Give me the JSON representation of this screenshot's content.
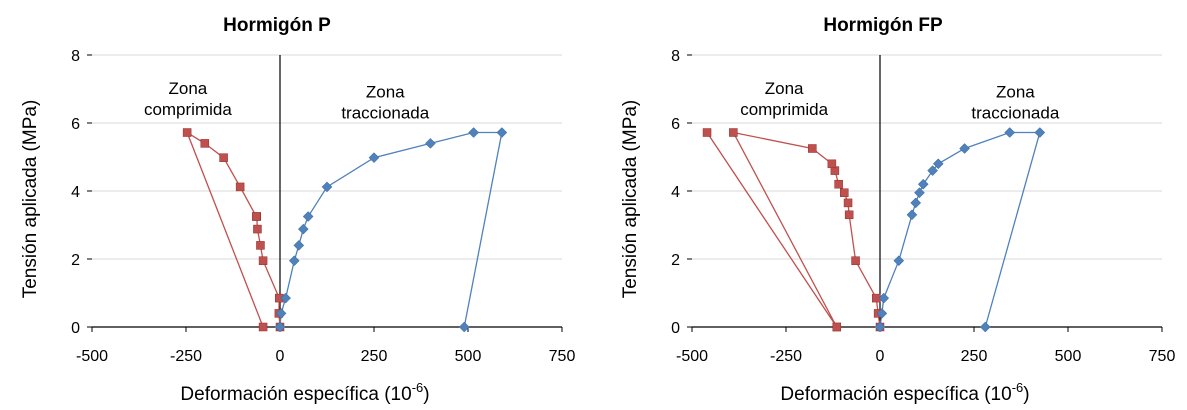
{
  "colors": {
    "compression": "#c0504d",
    "tension": "#4f81bd",
    "grid": "#d9d9d9",
    "axis": "#000000"
  },
  "chart_data": [
    {
      "type": "scatter",
      "title": "Hormigón P",
      "ylabel": "Tensión aplicada (MPa)",
      "xlabel_main": "Deformación específica  (10",
      "xlabel_exp": "-6",
      "xlabel_close": ")",
      "xlim": [
        -500,
        750
      ],
      "ylim": [
        0,
        8
      ],
      "xticks": [
        -500,
        -250,
        0,
        250,
        500,
        750
      ],
      "yticks": [
        0,
        2,
        4,
        6,
        8
      ],
      "grid": true,
      "annotations": [
        {
          "text": "Zona\ncomprimida",
          "x": -245,
          "y": 6.85
        },
        {
          "text": "Zona\ntraccionada",
          "x": 280,
          "y": 6.75
        }
      ],
      "series": [
        {
          "marker": "square",
          "color": "#c0504d",
          "x": [
            0,
            -3,
            -2,
            -45,
            -52,
            -60,
            -62,
            -63,
            -106,
            -150,
            -200,
            -247,
            -45
          ],
          "y": [
            0,
            0.4,
            0.85,
            1.95,
            2.4,
            2.88,
            3.25,
            3.25,
            4.12,
            4.98,
            5.4,
            5.72,
            0
          ]
        },
        {
          "marker": "diamond",
          "color": "#4f81bd",
          "x": [
            0,
            3,
            15,
            38,
            50,
            62,
            75,
            125,
            250,
            400,
            515,
            590,
            490
          ],
          "y": [
            0,
            0.4,
            0.85,
            1.95,
            2.4,
            2.88,
            3.25,
            4.12,
            4.98,
            5.4,
            5.72,
            5.72,
            0
          ]
        }
      ]
    },
    {
      "type": "scatter",
      "title": "Hormigón FP",
      "ylabel": "Tensión aplicada (MPa)",
      "xlabel_main": "Deformación específica  (10",
      "xlabel_exp": "-6",
      "xlabel_close": ")",
      "xlim": [
        -500,
        750
      ],
      "ylim": [
        0,
        8
      ],
      "xticks": [
        -500,
        -250,
        0,
        250,
        500,
        750
      ],
      "yticks": [
        0,
        2,
        4,
        6,
        8
      ],
      "grid": true,
      "annotations": [
        {
          "text": "Zona\ncomprimida",
          "x": -255,
          "y": 6.85
        },
        {
          "text": "Zona\ntraccionada",
          "x": 360,
          "y": 6.75
        }
      ],
      "series": [
        {
          "marker": "square",
          "color": "#c0504d",
          "x": [
            0,
            -5,
            -10,
            -65,
            -82,
            -85,
            -95,
            -110,
            -120,
            -128,
            -180,
            -390,
            -115,
            -460,
            -115
          ],
          "y": [
            0,
            0.4,
            0.85,
            1.95,
            3.3,
            3.65,
            3.95,
            4.2,
            4.6,
            4.8,
            5.25,
            5.72,
            0,
            5.72,
            0
          ]
        },
        {
          "marker": "diamond",
          "color": "#4f81bd",
          "x": [
            0,
            5,
            10,
            50,
            85,
            95,
            105,
            115,
            140,
            155,
            225,
            345,
            425,
            280
          ],
          "y": [
            0,
            0.4,
            0.85,
            1.95,
            3.3,
            3.65,
            3.95,
            4.2,
            4.6,
            4.8,
            5.25,
            5.72,
            5.72,
            0
          ]
        }
      ]
    }
  ]
}
